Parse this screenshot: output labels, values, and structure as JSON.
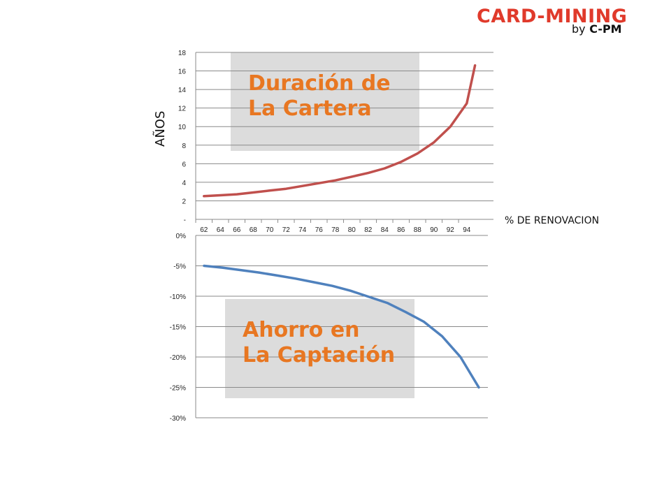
{
  "logo": {
    "main": "CARD-MINING",
    "by": "by",
    "brand": "C-PM",
    "color": "#e03a2b"
  },
  "chart_data": [
    {
      "type": "line",
      "title": "Duración de La Cartera",
      "title_lines": [
        "Duración de",
        "La Cartera"
      ],
      "title_color": "#e87722",
      "xlabel": "% DE RENOVACION",
      "ylabel": "AÑOS",
      "x": [
        62,
        64,
        66,
        68,
        70,
        72,
        74,
        76,
        78,
        80,
        82,
        84,
        86,
        88,
        90,
        92,
        94,
        95
      ],
      "categories": [
        "62",
        "64",
        "66",
        "68",
        "70",
        "72",
        "74",
        "76",
        "78",
        "80",
        "82",
        "84",
        "86",
        "88",
        "90",
        "92",
        "94"
      ],
      "series": [
        {
          "color": "#c0504d",
          "values": [
            2.5,
            2.6,
            2.7,
            2.9,
            3.1,
            3.3,
            3.6,
            3.9,
            4.2,
            4.6,
            5.0,
            5.5,
            6.2,
            7.1,
            8.3,
            10.0,
            12.5,
            16.6
          ]
        }
      ],
      "ylim": [
        0,
        18
      ],
      "yticks": [
        0,
        2,
        4,
        6,
        8,
        10,
        12,
        14,
        16,
        18
      ],
      "ytick_labels": [
        "-",
        "2",
        "4",
        "6",
        "8",
        "10",
        "12",
        "14",
        "16",
        "18"
      ],
      "grid": true,
      "legend": "none"
    },
    {
      "type": "line",
      "title": "Ahorro en La Captación",
      "title_lines": [
        "Ahorro en",
        "La Captación"
      ],
      "title_color": "#e87722",
      "series": [
        {
          "color": "#4f81bd",
          "values": [
            -5.0,
            -5.3,
            -5.7,
            -6.1,
            -6.6,
            -7.1,
            -7.7,
            -8.3,
            -9.1,
            -10.1,
            -11.1,
            -12.6,
            -14.2,
            -16.6,
            -20.0,
            -25.0
          ]
        }
      ],
      "ylim": [
        -30,
        0
      ],
      "yticks": [
        0,
        -5,
        -10,
        -15,
        -20,
        -25,
        -30
      ],
      "ytick_labels": [
        "0%",
        "-5%",
        "-10%",
        "-15%",
        "-20%",
        "-25%",
        "-30%"
      ],
      "grid": true,
      "legend": "none"
    }
  ]
}
